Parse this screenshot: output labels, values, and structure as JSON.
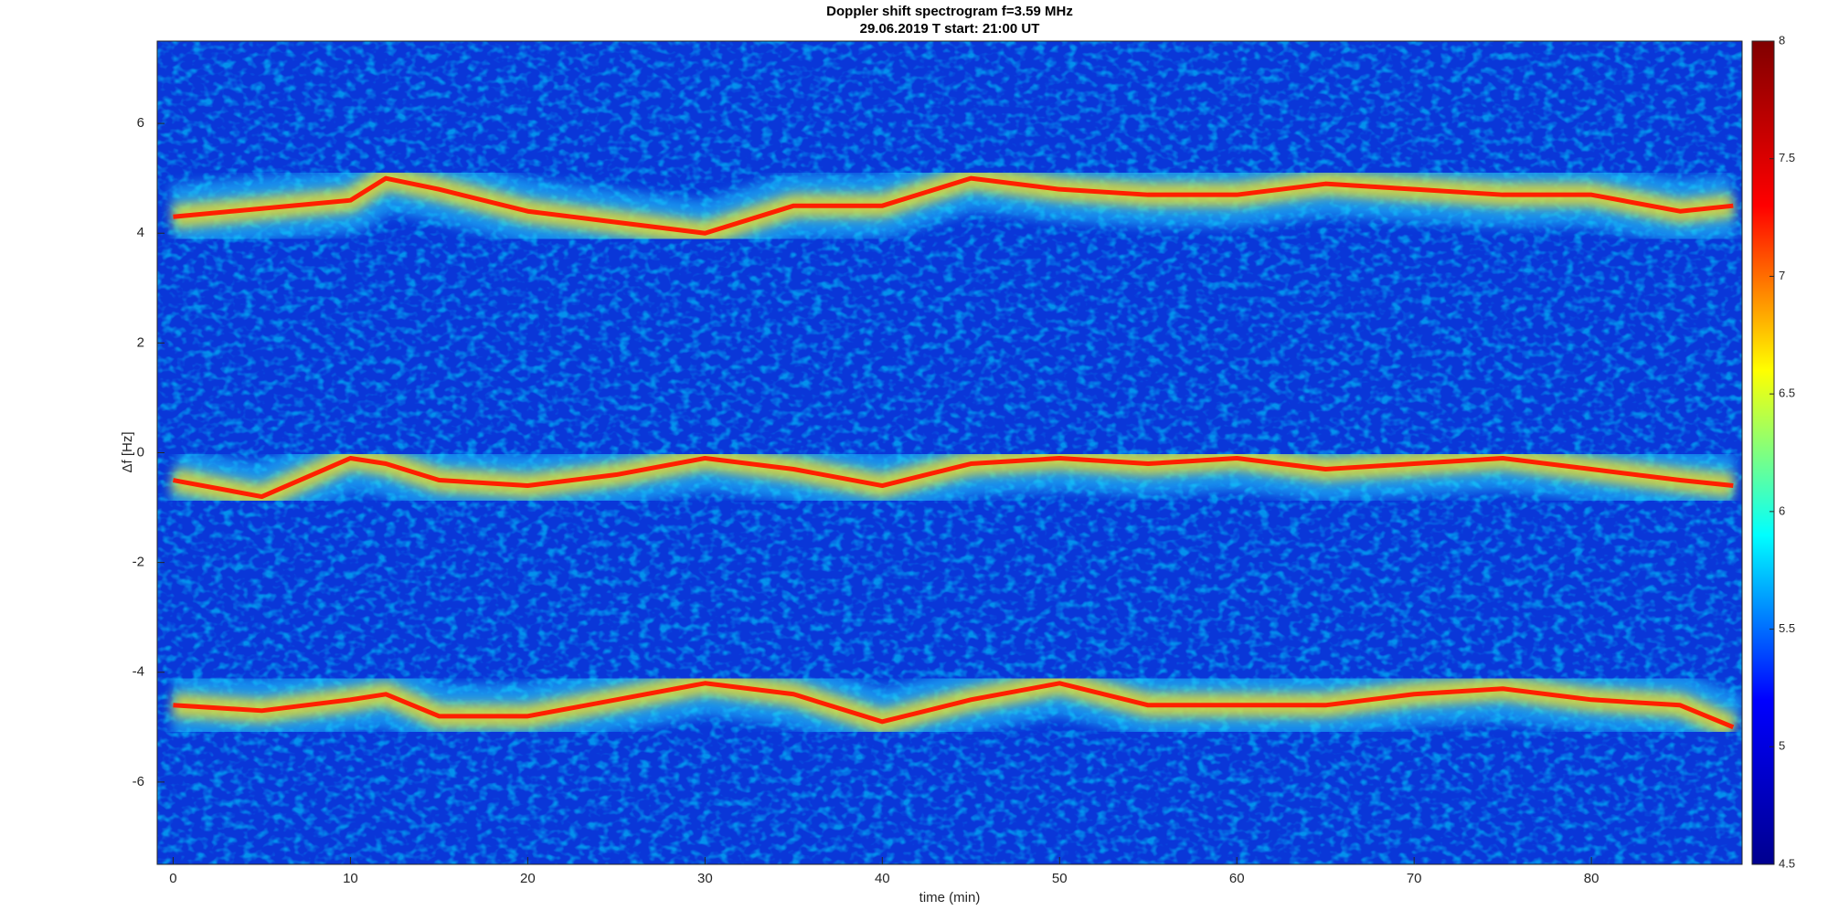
{
  "chart_data": {
    "type": "spectrogram",
    "title": "Doppler shift spectrogram f=3.59 MHz",
    "subtitle": "29.06.2019   T start: 21:00 UT",
    "x_label": "time (min)",
    "y_label": "Δf [Hz]",
    "xlim": [
      -0.9,
      88.5
    ],
    "ylim": [
      -7.5,
      7.5
    ],
    "xticks": [
      0,
      10,
      20,
      30,
      40,
      50,
      60,
      70,
      80
    ],
    "yticks": [
      -6,
      -4,
      -2,
      0,
      2,
      4,
      6
    ],
    "clim": [
      4.5,
      8
    ],
    "cticks": [
      4.5,
      5,
      5.5,
      6,
      6.5,
      7,
      7.5,
      8
    ],
    "colormap": [
      "#00008f",
      "#0000ff",
      "#00ffff",
      "#ffff00",
      "#ff0000",
      "#800000"
    ],
    "x": [
      0,
      5,
      10,
      12,
      15,
      20,
      25,
      30,
      35,
      40,
      45,
      50,
      55,
      60,
      65,
      70,
      75,
      80,
      85,
      88
    ],
    "series": [
      {
        "color": "#ff2000",
        "values": [
          4.3,
          4.45,
          4.6,
          5.0,
          4.8,
          4.4,
          4.2,
          4.0,
          4.5,
          4.5,
          5.0,
          4.8,
          4.7,
          4.7,
          4.9,
          4.8,
          4.7,
          4.7,
          4.4,
          4.5
        ]
      },
      {
        "color": "#ff2000",
        "values": [
          -0.5,
          -0.8,
          -0.1,
          -0.2,
          -0.5,
          -0.6,
          -0.4,
          -0.1,
          -0.3,
          -0.6,
          -0.2,
          -0.1,
          -0.2,
          -0.1,
          -0.3,
          -0.2,
          -0.1,
          -0.3,
          -0.5,
          -0.6
        ]
      },
      {
        "color": "#ff2000",
        "values": [
          -4.6,
          -4.7,
          -4.5,
          -4.4,
          -4.8,
          -4.8,
          -4.5,
          -4.2,
          -4.4,
          -4.9,
          -4.5,
          -4.2,
          -4.6,
          -4.6,
          -4.6,
          -4.4,
          -4.3,
          -4.5,
          -4.6,
          -5.0
        ]
      }
    ]
  }
}
